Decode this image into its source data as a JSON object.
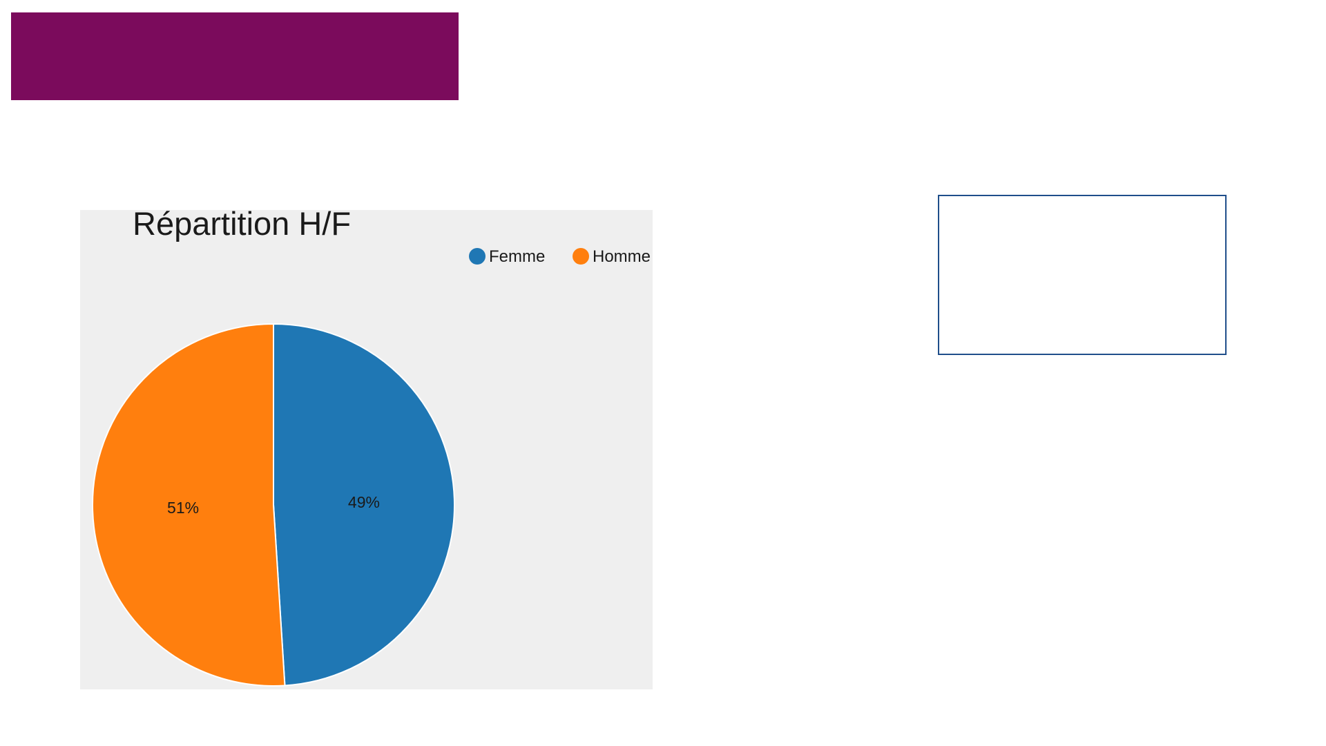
{
  "colors": {
    "banner": "#7b0b5c",
    "panel_background": "#efefef",
    "box_border": "#1f4e8a"
  },
  "chart_data": {
    "type": "pie",
    "title": "Répartition H/F",
    "legend_position": "top-right",
    "slices": [
      {
        "name": "Femme",
        "value": 49,
        "label": "49%",
        "color": "#1f77b4"
      },
      {
        "name": "Homme",
        "value": 51,
        "label": "51%",
        "color": "#ff7f0e"
      }
    ]
  }
}
